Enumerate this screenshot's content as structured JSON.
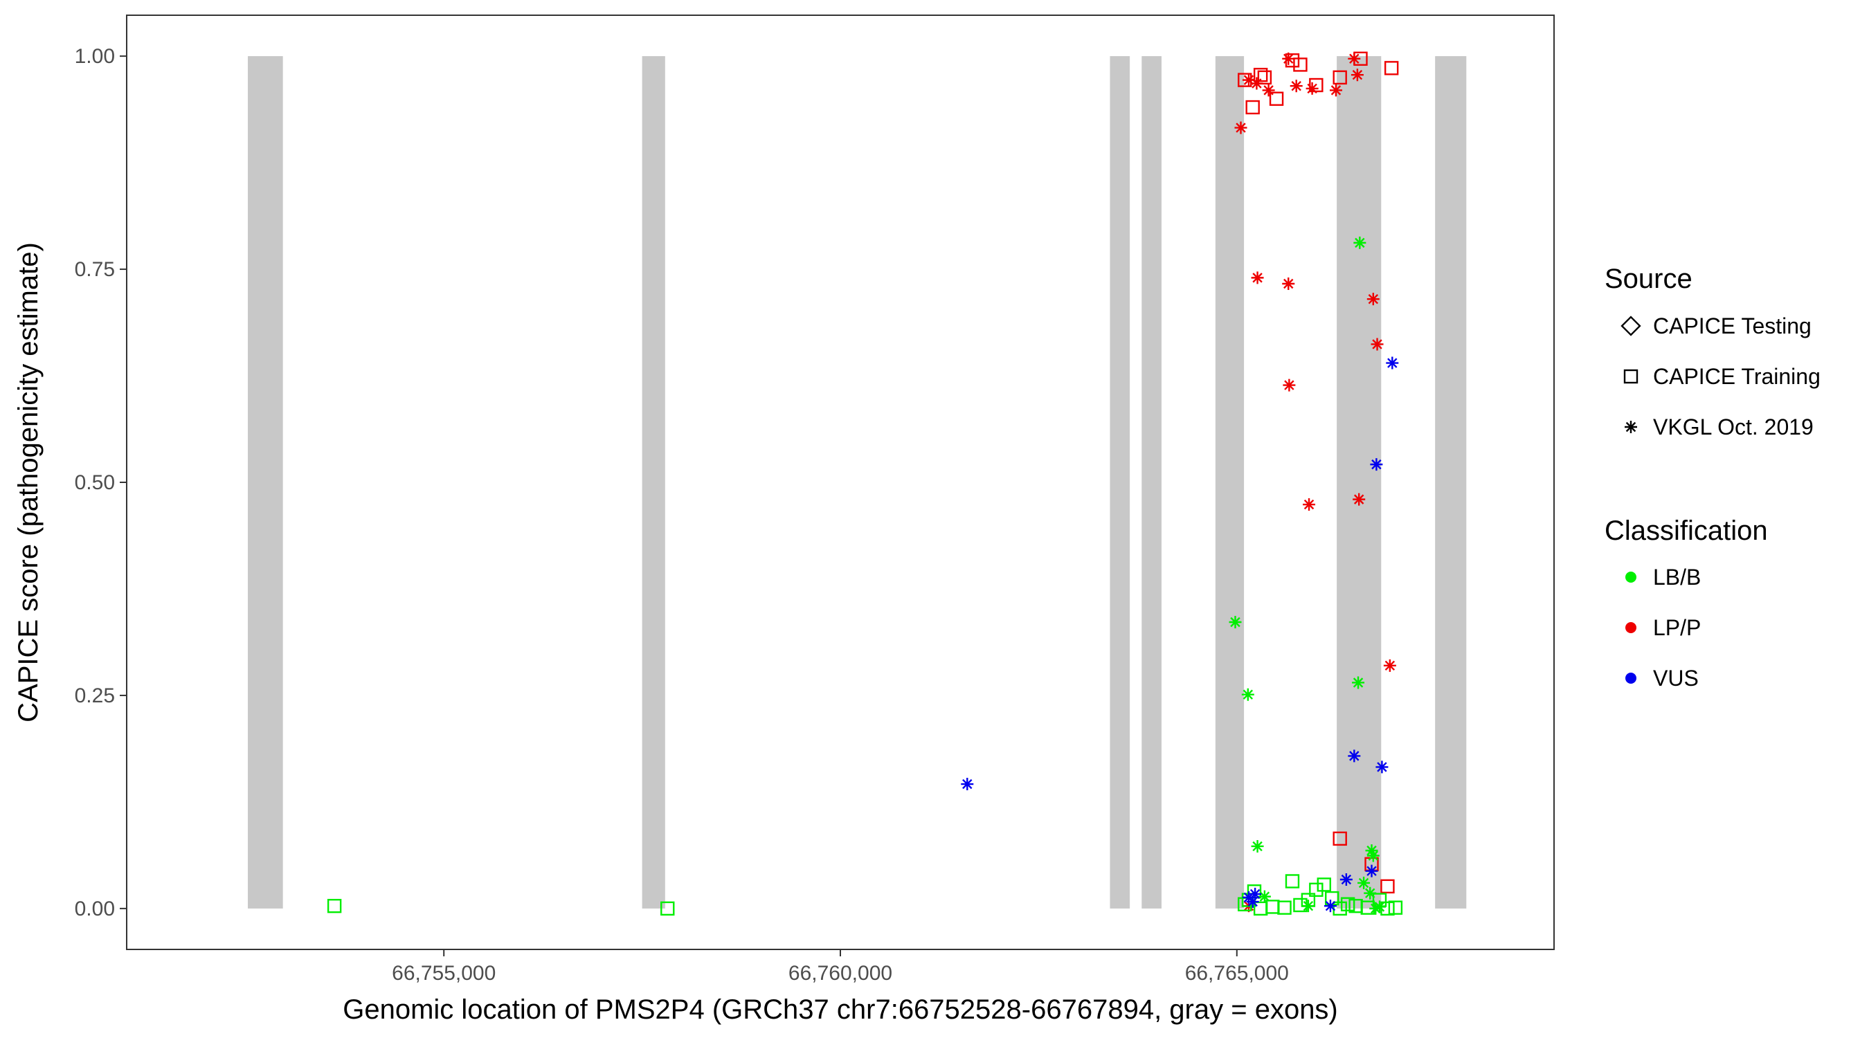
{
  "chart_data": {
    "type": "scatter",
    "xlabel": "Genomic location of PMS2P4 (GRCh37 chr7:66752528-66767894, gray = exons)",
    "ylabel": "CAPICE score (pathogenicity estimate)",
    "xlim": [
      66751000,
      66769000
    ],
    "ylim": [
      -0.048,
      1.048
    ],
    "x_ticks": [
      66755000,
      66760000,
      66765000
    ],
    "x_tick_labels": [
      "66,755,000",
      "66,760,000",
      "66,765,000"
    ],
    "y_ticks": [
      0,
      0.25,
      0.5,
      0.75,
      1.0
    ],
    "y_tick_labels": [
      "0.00",
      "0.25",
      "0.50",
      "0.75",
      "1.00"
    ],
    "grid": false,
    "legend_position": "right",
    "exons": [
      [
        66752528,
        66752970
      ],
      [
        66757500,
        66757790
      ],
      [
        66766260,
        66766820
      ],
      [
        66763400,
        66763650
      ],
      [
        66763800,
        66764050
      ],
      [
        66764730,
        66765090
      ],
      [
        66767500,
        66767894
      ]
    ],
    "colors": {
      "LB/B": "#00ee00",
      "LP/P": "#ee0000",
      "VUS": "#0000ee",
      "exon": "#c8c8c8"
    },
    "legends": {
      "source": {
        "title": "Source",
        "entries": [
          {
            "label": "CAPICE Testing",
            "shape": "diamond"
          },
          {
            "label": "CAPICE Training",
            "shape": "square"
          },
          {
            "label": "VKGL Oct. 2019",
            "shape": "asterisk"
          }
        ]
      },
      "classification": {
        "title": "Classification",
        "entries": [
          {
            "label": "LB/B",
            "color": "#00ee00"
          },
          {
            "label": "LP/P",
            "color": "#ee0000"
          },
          {
            "label": "VUS",
            "color": "#0000ee"
          }
        ]
      }
    },
    "series": [
      {
        "source": "CAPICE Training",
        "class": "LP/P",
        "shape": "square",
        "color": "#ee0000",
        "points": [
          [
            66765100,
            0.972
          ],
          [
            66765200,
            0.94
          ],
          [
            66765300,
            0.978
          ],
          [
            66765350,
            0.975
          ],
          [
            66765500,
            0.95
          ],
          [
            66765700,
            0.995
          ],
          [
            66765800,
            0.99
          ],
          [
            66766000,
            0.966
          ],
          [
            66766300,
            0.975
          ],
          [
            66766560,
            0.997
          ],
          [
            66766950,
            0.986
          ],
          [
            66766700,
            0.052
          ],
          [
            66766300,
            0.082
          ],
          [
            66766900,
            0.026
          ]
        ]
      },
      {
        "source": "VKGL Oct. 2019",
        "class": "LP/P",
        "shape": "asterisk",
        "color": "#ee0000",
        "points": [
          [
            66765050,
            0.916
          ],
          [
            66765150,
            0.972
          ],
          [
            66765250,
            0.968
          ],
          [
            66765400,
            0.96
          ],
          [
            66765650,
            0.997
          ],
          [
            66765750,
            0.965
          ],
          [
            66765950,
            0.962
          ],
          [
            66766250,
            0.96
          ],
          [
            66766480,
            0.997
          ],
          [
            66766520,
            0.978
          ],
          [
            66765260,
            0.74
          ],
          [
            66765650,
            0.733
          ],
          [
            66766720,
            0.715
          ],
          [
            66766770,
            0.662
          ],
          [
            66765660,
            0.614
          ],
          [
            66765910,
            0.474
          ],
          [
            66766540,
            0.48
          ],
          [
            66766930,
            0.285
          ],
          [
            66765150,
            0.003
          ]
        ]
      },
      {
        "source": "CAPICE Training",
        "class": "LB/B",
        "shape": "square",
        "color": "#00ee00",
        "points": [
          [
            66753620,
            0.003
          ],
          [
            66757820,
            0.0
          ],
          [
            66765100,
            0.005
          ],
          [
            66765150,
            0.01
          ],
          [
            66765220,
            0.02
          ],
          [
            66765300,
            0.0
          ],
          [
            66765450,
            0.002
          ],
          [
            66765600,
            0.001
          ],
          [
            66765700,
            0.032
          ],
          [
            66765800,
            0.004
          ],
          [
            66765900,
            0.01
          ],
          [
            66766000,
            0.022
          ],
          [
            66766100,
            0.028
          ],
          [
            66766200,
            0.012
          ],
          [
            66766300,
            0.0
          ],
          [
            66766400,
            0.005
          ],
          [
            66766500,
            0.003
          ],
          [
            66766650,
            0.001
          ],
          [
            66766800,
            0.01
          ],
          [
            66766900,
            0.0
          ],
          [
            66767000,
            0.001
          ]
        ]
      },
      {
        "source": "VKGL Oct. 2019",
        "class": "LB/B",
        "shape": "asterisk",
        "color": "#00ee00",
        "points": [
          [
            66766550,
            0.781
          ],
          [
            66764980,
            0.336
          ],
          [
            66765140,
            0.251
          ],
          [
            66766530,
            0.265
          ],
          [
            66765260,
            0.073
          ],
          [
            66766700,
            0.068
          ],
          [
            66766720,
            0.062
          ],
          [
            66766600,
            0.03
          ],
          [
            66765900,
            0.003
          ],
          [
            66766680,
            0.018
          ],
          [
            66766800,
            0.002
          ],
          [
            66766750,
            0.0
          ],
          [
            66765350,
            0.014
          ]
        ]
      },
      {
        "source": "VKGL Oct. 2019",
        "class": "VUS",
        "shape": "asterisk",
        "color": "#0000ee",
        "points": [
          [
            66761600,
            0.146
          ],
          [
            66766960,
            0.64
          ],
          [
            66766760,
            0.521
          ],
          [
            66766480,
            0.179
          ],
          [
            66766830,
            0.166
          ],
          [
            66766380,
            0.034
          ],
          [
            66766700,
            0.044
          ],
          [
            66765150,
            0.013
          ],
          [
            66765230,
            0.017
          ],
          [
            66765200,
            0.008
          ],
          [
            66766180,
            0.003
          ]
        ]
      }
    ]
  }
}
